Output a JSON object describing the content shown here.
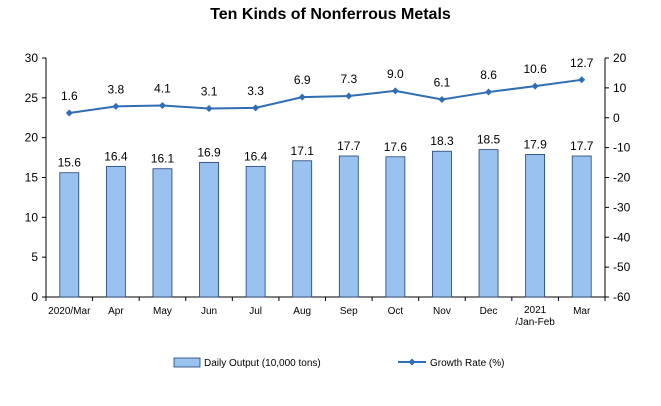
{
  "chart_data": {
    "type": "bar",
    "title": "Ten Kinds of Nonferrous Metals",
    "categories": [
      "2020/Mar",
      "Apr",
      "May",
      "Jun",
      "Jul",
      "Aug",
      "Sep",
      "Oct",
      "Nov",
      "Dec",
      "2021\n/Jan-Feb",
      "Mar"
    ],
    "series": [
      {
        "name": "Daily Output (10,000 tons)",
        "type": "bar",
        "axis": "left",
        "color": "#9ac2f0",
        "values": [
          15.6,
          16.4,
          16.1,
          16.9,
          16.4,
          17.1,
          17.7,
          17.6,
          18.3,
          18.5,
          17.9,
          17.7
        ],
        "labels": [
          "15.6",
          "16.4",
          "16.1",
          "16.9",
          "16.4",
          "17.1",
          "17.7",
          "17.6",
          "18.3",
          "18.5",
          "17.9",
          "17.7"
        ]
      },
      {
        "name": "Growth Rate (%)",
        "type": "line",
        "axis": "right",
        "color": "#2f6db5",
        "values": [
          1.6,
          3.8,
          4.1,
          3.1,
          3.3,
          6.9,
          7.3,
          9.0,
          6.1,
          8.6,
          10.6,
          12.7
        ],
        "labels": [
          "1.6",
          "3.8",
          "4.1",
          "3.1",
          "3.3",
          "6.9",
          "7.3",
          "9.0",
          "6.1",
          "8.6",
          "10.6",
          "12.7"
        ]
      }
    ],
    "y_left": {
      "min": 0,
      "max": 30,
      "ticks": [
        "0",
        "5",
        "10",
        "15",
        "20",
        "25",
        "30"
      ]
    },
    "y_right": {
      "min": -60,
      "max": 20,
      "ticks": [
        "-60",
        "-50",
        "-40",
        "-30",
        "-20",
        "-10",
        "0",
        "10",
        "20"
      ]
    },
    "grid": false,
    "legend_position": "bottom"
  }
}
